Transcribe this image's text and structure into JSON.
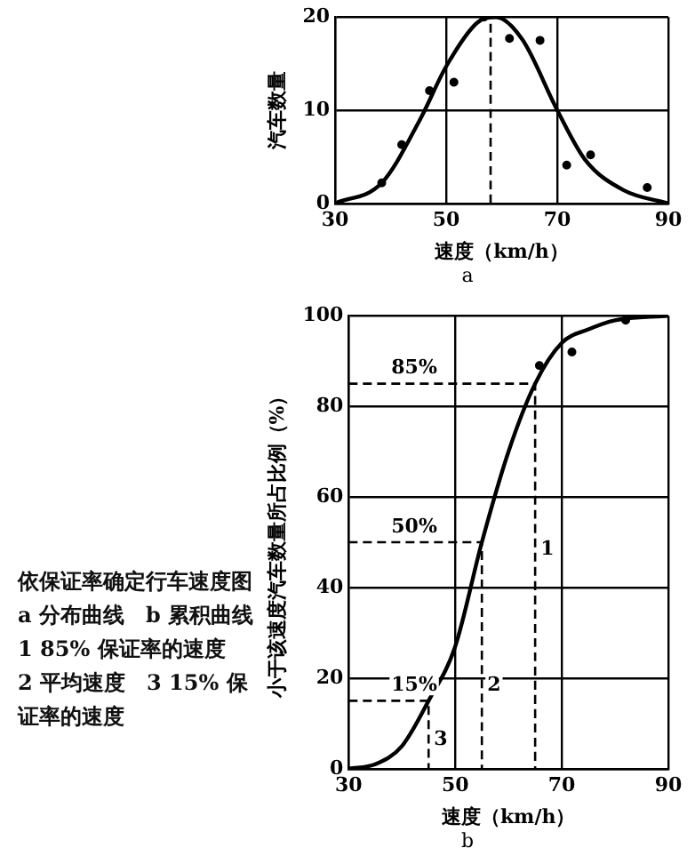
{
  "chart_data": [
    {
      "type": "line",
      "subtitle": "a",
      "xlabel": "速度（km/h）",
      "ylabel": "汽车数量",
      "xlim": [
        30,
        90
      ],
      "xticks": [
        30,
        50,
        70,
        90
      ],
      "ylim": [
        0,
        20
      ],
      "yticks": [
        0,
        10,
        20
      ],
      "grid": true,
      "series": [
        {
          "type": "scatter",
          "color": "#000000",
          "x": [
            38.4,
            42,
            47,
            51.4,
            56.8,
            61.4,
            66.9,
            71.7,
            76,
            86.2
          ],
          "values": [
            2.2,
            6.3,
            12.1,
            13,
            20,
            17.7,
            17.5,
            4.1,
            5.2,
            1.7
          ]
        },
        {
          "type": "line",
          "color": "#000000",
          "x": [
            30,
            38.4,
            45.3,
            50,
            55.6,
            59,
            63.7,
            70,
            75,
            82,
            90
          ],
          "values": [
            0,
            2.2,
            9,
            14.7,
            19.4,
            20,
            17.6,
            10,
            4.7,
            1.4,
            0
          ]
        },
        {
          "type": "line",
          "color": "#000000",
          "line_style": "dashed",
          "x": [
            58,
            58
          ],
          "values": [
            0,
            20
          ]
        }
      ]
    },
    {
      "type": "line",
      "subtitle": "b",
      "xlabel": "速度（km/h）",
      "ylabel": "小于该速度汽车数量所占比例（%）",
      "xlim": [
        30,
        90
      ],
      "xticks": [
        30,
        50,
        70,
        90
      ],
      "ylim": [
        0,
        100
      ],
      "yticks": [
        0,
        20,
        40,
        60,
        80,
        100
      ],
      "grid": true,
      "series": [
        {
          "type": "scatter",
          "color": "#000000",
          "x": [
            65.8,
            71.9,
            82
          ],
          "values": [
            89,
            92,
            99
          ]
        },
        {
          "type": "line",
          "color": "#000000",
          "x": [
            30,
            35,
            40,
            45,
            50,
            55,
            60,
            65,
            70,
            75,
            80,
            90
          ],
          "values": [
            0,
            1,
            5,
            15,
            27,
            50,
            70,
            85,
            94,
            97,
            99,
            100
          ]
        },
        {
          "type": "line",
          "color": "#000000",
          "line_style": "dashed",
          "x": [
            30,
            65,
            65
          ],
          "values": [
            85,
            85,
            0
          ]
        },
        {
          "type": "line",
          "color": "#000000",
          "line_style": "dashed",
          "x": [
            30,
            55,
            55
          ],
          "values": [
            50,
            50,
            0
          ]
        },
        {
          "type": "line",
          "color": "#000000",
          "line_style": "dashed",
          "x": [
            30,
            45,
            45
          ],
          "values": [
            15,
            15,
            0
          ]
        }
      ],
      "annotations": [
        {
          "text": "85%",
          "x": 37,
          "y": 85
        },
        {
          "text": "50%",
          "x": 37,
          "y": 50
        },
        {
          "text": "15%",
          "x": 37,
          "y": 15
        },
        {
          "text": "1",
          "x": 65,
          "y": 45
        },
        {
          "text": "2",
          "x": 55,
          "y": 15
        },
        {
          "text": "3",
          "x": 45,
          "y": 3
        },
        "依保证率确定行车速度图",
        "a 分布曲线　b 累积曲线",
        "1 85% 保证率的速度",
        "2 平均速度　3 15% 保证率的速度"
      ]
    }
  ]
}
